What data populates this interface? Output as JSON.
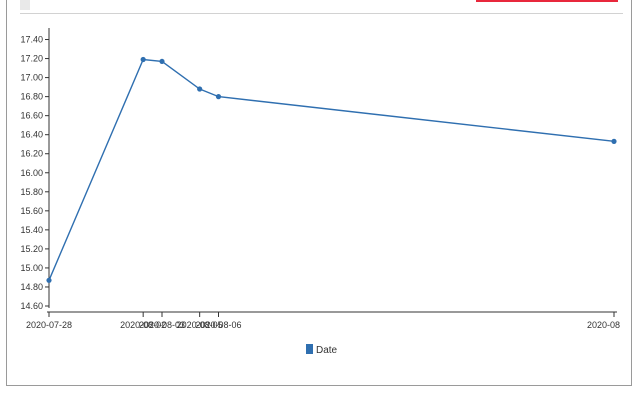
{
  "colors": {
    "series": "#2f6fb0",
    "axis": "#333333",
    "accent": "#e8283c"
  },
  "chart_data": {
    "type": "line",
    "title": "",
    "xlabel": "",
    "ylabel": "",
    "x": [
      "2020-07-28",
      "2020-08-02",
      "2020-08-03",
      "2020-08-05",
      "2020-08-06",
      "2020-08"
    ],
    "series": [
      {
        "name": "Date",
        "values": [
          14.87,
          17.19,
          17.17,
          16.88,
          16.8,
          16.33
        ]
      }
    ],
    "ylim": [
      14.6,
      17.5
    ],
    "yticks": [
      "14.60",
      "14.80",
      "15.00",
      "15.20",
      "15.40",
      "15.60",
      "15.80",
      "16.00",
      "16.20",
      "16.40",
      "16.60",
      "16.80",
      "17.00",
      "17.20",
      "17.40"
    ],
    "xtick_labels": [
      "2020-07-28",
      "2020-08-02",
      "2020-08-03",
      "2020-08-05",
      "2020-08-06",
      "2020-08"
    ],
    "grid": false,
    "legend": "bottom-center"
  }
}
